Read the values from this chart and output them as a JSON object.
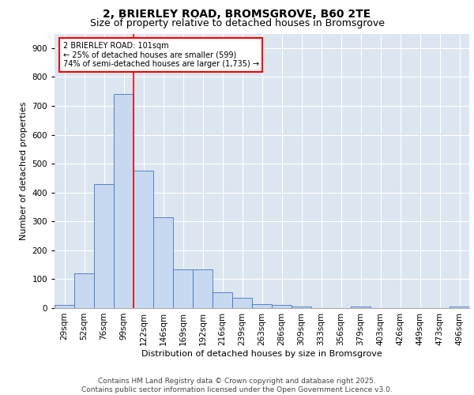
{
  "title_line1": "2, BRIERLEY ROAD, BROMSGROVE, B60 2TE",
  "title_line2": "Size of property relative to detached houses in Bromsgrove",
  "xlabel": "Distribution of detached houses by size in Bromsgrove",
  "ylabel": "Number of detached properties",
  "bar_color": "#c6d9f0",
  "bar_edge_color": "#4472c4",
  "background_color": "#dce6f1",
  "grid_color": "#ffffff",
  "annotation_text": "2 BRIERLEY ROAD: 101sqm\n← 25% of detached houses are smaller (599)\n74% of semi-detached houses are larger (1,735) →",
  "ref_line_color": "#ff0000",
  "ref_line_x": 3.5,
  "categories": [
    "29sqm",
    "52sqm",
    "76sqm",
    "99sqm",
    "122sqm",
    "146sqm",
    "169sqm",
    "192sqm",
    "216sqm",
    "239sqm",
    "263sqm",
    "286sqm",
    "309sqm",
    "333sqm",
    "356sqm",
    "379sqm",
    "403sqm",
    "426sqm",
    "449sqm",
    "473sqm",
    "496sqm"
  ],
  "values": [
    10,
    120,
    430,
    740,
    475,
    315,
    135,
    135,
    55,
    35,
    15,
    10,
    5,
    0,
    0,
    5,
    0,
    0,
    0,
    0,
    5
  ],
  "ylim": [
    0,
    950
  ],
  "yticks": [
    0,
    100,
    200,
    300,
    400,
    500,
    600,
    700,
    800,
    900
  ],
  "footer": "Contains HM Land Registry data © Crown copyright and database right 2025.\nContains public sector information licensed under the Open Government Licence v3.0.",
  "title_fontsize": 10,
  "subtitle_fontsize": 9,
  "axis_label_fontsize": 8,
  "tick_fontsize": 7.5,
  "footer_fontsize": 6.5
}
